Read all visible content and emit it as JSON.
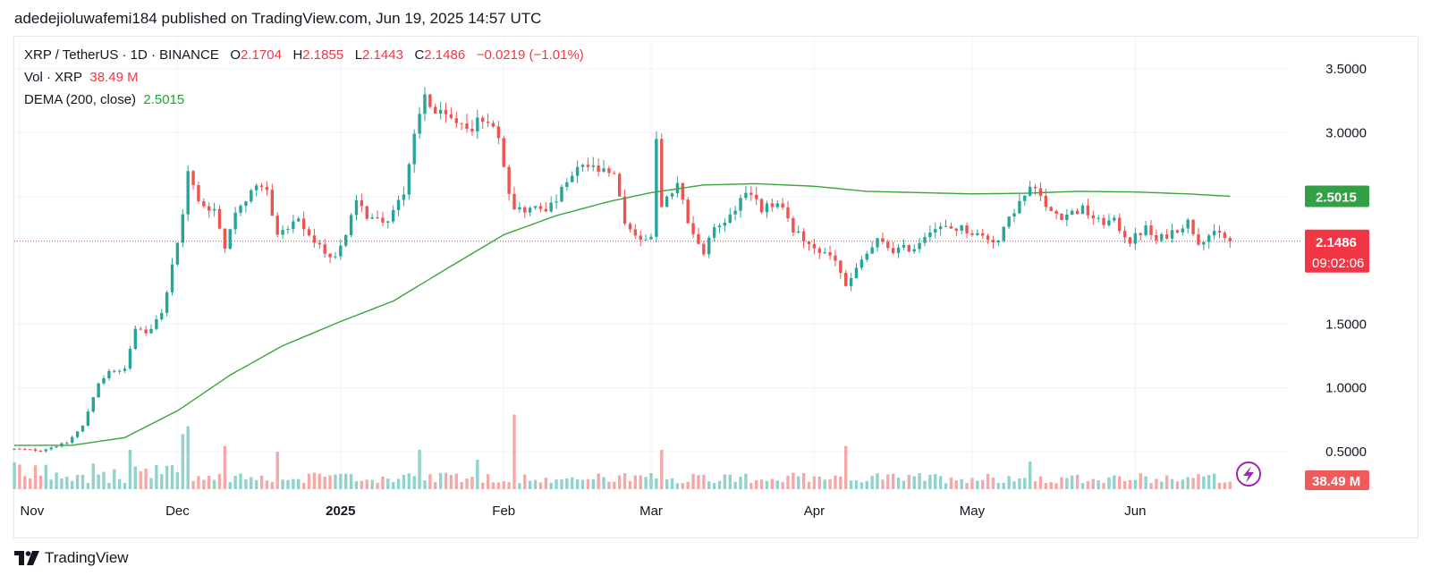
{
  "publisher_line": "adedejioluwafemi184 published on TradingView.com, Jun 19, 2025 14:57 UTC",
  "legend": {
    "symbol": "XRP / TetherUS · 1D · BINANCE",
    "o_label": "O",
    "o_value": "2.1704",
    "h_label": "H",
    "h_value": "2.1855",
    "l_label": "L",
    "l_value": "2.1443",
    "c_label": "C",
    "c_value": "2.1486",
    "change": "−0.0219 (−1.01%)",
    "vol_label": "Vol · XRP",
    "vol_value": "38.49 M",
    "dema_label": "DEMA (200, close)",
    "dema_value": "2.5015"
  },
  "badges": {
    "dema": "2.5015",
    "price": "2.1486",
    "countdown": "09:02:06",
    "volume": "38.49 M"
  },
  "brand": "TradingView",
  "colors": {
    "up": "#26a69a",
    "down": "#ef5350",
    "up_vol": "#8fd3cc",
    "down_vol": "#f4a9a8",
    "dema": "#3aa53a",
    "price_line": "#f23645",
    "grid": "#f0f3fa"
  },
  "chart_data": {
    "type": "candlestick",
    "symbol": "XRP / TetherUS",
    "interval": "1D",
    "exchange": "BINANCE",
    "y_ticks": [
      3.5,
      3.0,
      2.5,
      1.5,
      1.0,
      0.5
    ],
    "y_tick_labels": [
      "3.5000",
      "3.0000",
      "1.5000",
      "1.0000",
      "0.5000"
    ],
    "ylim": [
      0.3,
      3.66
    ],
    "x_ticks": [
      {
        "label": "Nov",
        "date": "2024-11-01",
        "bold": false
      },
      {
        "label": "Dec",
        "date": "2024-12-01",
        "bold": false
      },
      {
        "label": "2025",
        "date": "2025-01-01",
        "bold": true
      },
      {
        "label": "Feb",
        "date": "2025-02-01",
        "bold": false
      },
      {
        "label": "Mar",
        "date": "2025-03-01",
        "bold": false
      },
      {
        "label": "Apr",
        "date": "2025-04-01",
        "bold": false
      },
      {
        "label": "May",
        "date": "2025-05-01",
        "bold": false
      },
      {
        "label": "Jun",
        "date": "2025-06-01",
        "bold": false
      }
    ],
    "xlim": [
      "2024-10-31",
      "2025-06-30"
    ],
    "close_anchors": [
      [
        "2024-10-31",
        0.52
      ],
      [
        "2024-11-05",
        0.51
      ],
      [
        "2024-11-10",
        0.57
      ],
      [
        "2024-11-13",
        0.7
      ],
      [
        "2024-11-16",
        1.05
      ],
      [
        "2024-11-18",
        1.12
      ],
      [
        "2024-11-21",
        1.15
      ],
      [
        "2024-11-23",
        1.45
      ],
      [
        "2024-11-25",
        1.42
      ],
      [
        "2024-11-28",
        1.6
      ],
      [
        "2024-11-30",
        1.95
      ],
      [
        "2024-12-02",
        2.35
      ],
      [
        "2024-12-03",
        2.7
      ],
      [
        "2024-12-05",
        2.45
      ],
      [
        "2024-12-08",
        2.4
      ],
      [
        "2024-12-10",
        2.1
      ],
      [
        "2024-12-12",
        2.4
      ],
      [
        "2024-12-16",
        2.55
      ],
      [
        "2024-12-18",
        2.55
      ],
      [
        "2024-12-20",
        2.2
      ],
      [
        "2024-12-24",
        2.3
      ],
      [
        "2024-12-27",
        2.15
      ],
      [
        "2024-12-30",
        2.02
      ],
      [
        "2025-01-01",
        2.1
      ],
      [
        "2025-01-04",
        2.45
      ],
      [
        "2025-01-06",
        2.35
      ],
      [
        "2025-01-10",
        2.3
      ],
      [
        "2025-01-13",
        2.55
      ],
      [
        "2025-01-15",
        3.0
      ],
      [
        "2025-01-17",
        3.3
      ],
      [
        "2025-01-19",
        3.15
      ],
      [
        "2025-01-22",
        3.1
      ],
      [
        "2025-01-26",
        3.05
      ],
      [
        "2025-01-29",
        3.12
      ],
      [
        "2025-01-31",
        2.95
      ],
      [
        "2025-02-02",
        2.55
      ],
      [
        "2025-02-03",
        2.4
      ],
      [
        "2025-02-06",
        2.4
      ],
      [
        "2025-02-10",
        2.42
      ],
      [
        "2025-02-13",
        2.6
      ],
      [
        "2025-02-16",
        2.75
      ],
      [
        "2025-02-19",
        2.7
      ],
      [
        "2025-02-22",
        2.65
      ],
      [
        "2025-02-24",
        2.3
      ],
      [
        "2025-02-27",
        2.15
      ],
      [
        "2025-03-01",
        2.2
      ],
      [
        "2025-03-02",
        2.95
      ],
      [
        "2025-03-03",
        2.4
      ],
      [
        "2025-03-06",
        2.6
      ],
      [
        "2025-03-08",
        2.3
      ],
      [
        "2025-03-11",
        2.05
      ],
      [
        "2025-03-13",
        2.25
      ],
      [
        "2025-03-16",
        2.35
      ],
      [
        "2025-03-19",
        2.55
      ],
      [
        "2025-03-22",
        2.4
      ],
      [
        "2025-03-25",
        2.45
      ],
      [
        "2025-03-28",
        2.25
      ],
      [
        "2025-03-31",
        2.1
      ],
      [
        "2025-04-03",
        2.05
      ],
      [
        "2025-04-05",
        2.0
      ],
      [
        "2025-04-07",
        1.8
      ],
      [
        "2025-04-08",
        1.85
      ],
      [
        "2025-04-10",
        2.0
      ],
      [
        "2025-04-13",
        2.15
      ],
      [
        "2025-04-16",
        2.08
      ],
      [
        "2025-04-20",
        2.1
      ],
      [
        "2025-04-23",
        2.25
      ],
      [
        "2025-04-26",
        2.25
      ],
      [
        "2025-04-29",
        2.25
      ],
      [
        "2025-05-02",
        2.2
      ],
      [
        "2025-05-06",
        2.15
      ],
      [
        "2025-05-09",
        2.4
      ],
      [
        "2025-05-12",
        2.55
      ],
      [
        "2025-05-13",
        2.6
      ],
      [
        "2025-05-15",
        2.4
      ],
      [
        "2025-05-18",
        2.35
      ],
      [
        "2025-05-22",
        2.4
      ],
      [
        "2025-05-25",
        2.3
      ],
      [
        "2025-05-28",
        2.3
      ],
      [
        "2025-05-31",
        2.15
      ],
      [
        "2025-06-03",
        2.25
      ],
      [
        "2025-06-05",
        2.15
      ],
      [
        "2025-06-09",
        2.25
      ],
      [
        "2025-06-11",
        2.3
      ],
      [
        "2025-06-13",
        2.15
      ],
      [
        "2025-06-15",
        2.2
      ],
      [
        "2025-06-17",
        2.2
      ],
      [
        "2025-06-19",
        2.1486
      ]
    ],
    "dema_anchors": [
      [
        "2024-10-31",
        0.55
      ],
      [
        "2024-11-11",
        0.55
      ],
      [
        "2024-11-21",
        0.61
      ],
      [
        "2024-12-01",
        0.82
      ],
      [
        "2024-12-11",
        1.1
      ],
      [
        "2024-12-21",
        1.33
      ],
      [
        "2025-01-01",
        1.52
      ],
      [
        "2025-01-11",
        1.68
      ],
      [
        "2025-01-21",
        1.93
      ],
      [
        "2025-02-01",
        2.2
      ],
      [
        "2025-02-11",
        2.35
      ],
      [
        "2025-02-21",
        2.46
      ],
      [
        "2025-03-01",
        2.53
      ],
      [
        "2025-03-11",
        2.59
      ],
      [
        "2025-03-21",
        2.6
      ],
      [
        "2025-04-01",
        2.58
      ],
      [
        "2025-04-11",
        2.54
      ],
      [
        "2025-04-21",
        2.53
      ],
      [
        "2025-05-01",
        2.52
      ],
      [
        "2025-05-11",
        2.525
      ],
      [
        "2025-05-21",
        2.54
      ],
      [
        "2025-06-01",
        2.535
      ],
      [
        "2025-06-11",
        2.52
      ],
      [
        "2025-06-19",
        2.5015
      ]
    ],
    "volume_spikes": [
      [
        "2024-11-15",
        1.3
      ],
      [
        "2024-11-22",
        2.0
      ],
      [
        "2024-12-02",
        2.8
      ],
      [
        "2024-12-03",
        3.2
      ],
      [
        "2024-12-10",
        2.2
      ],
      [
        "2024-12-20",
        1.9
      ],
      [
        "2025-01-16",
        2.0
      ],
      [
        "2025-01-27",
        1.5
      ],
      [
        "2025-02-03",
        3.8
      ],
      [
        "2025-03-03",
        2.0
      ],
      [
        "2025-04-07",
        2.2
      ],
      [
        "2025-05-12",
        1.4
      ]
    ],
    "last_close": 2.1486,
    "last_volume": "38.49 M"
  }
}
